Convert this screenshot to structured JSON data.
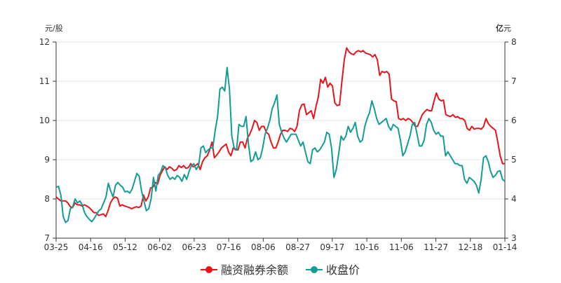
{
  "chart_data": {
    "type": "line",
    "left_axis": {
      "unit": "元/股",
      "ticks": [
        7,
        8,
        9,
        10,
        11,
        12
      ],
      "range": [
        7,
        12
      ]
    },
    "right_axis": {
      "unit_bold": "亿",
      "unit_rest": "元",
      "ticks": [
        3,
        4,
        5,
        6,
        7,
        8
      ],
      "range": [
        3,
        8
      ]
    },
    "x_tick_labels": [
      "03-25",
      "04-16",
      "05-12",
      "06-02",
      "06-23",
      "07-16",
      "08-06",
      "08-27",
      "09-17",
      "10-16",
      "11-06",
      "11-27",
      "12-18",
      "01-14"
    ],
    "series": [
      {
        "name": "融资融券余额",
        "axis": "right",
        "color": "#e8141b",
        "values": [
          4.05,
          4.0,
          3.95,
          3.95,
          3.95,
          3.9,
          3.8,
          3.78,
          3.9,
          3.85,
          3.85,
          3.82,
          3.85,
          3.82,
          3.78,
          3.72,
          3.65,
          3.65,
          3.58,
          3.6,
          3.62,
          3.55,
          3.7,
          3.9,
          4.0,
          4.05,
          4.02,
          3.82,
          3.85,
          3.82,
          3.8,
          3.78,
          3.75,
          3.78,
          3.8,
          3.78,
          3.82,
          4.1,
          3.95,
          4.05,
          4.28,
          4.3,
          4.42,
          4.38,
          4.6,
          4.72,
          4.82,
          4.75,
          4.82,
          4.78,
          4.72,
          4.75,
          4.85,
          4.8,
          4.85,
          4.78,
          4.8,
          4.9,
          4.82,
          4.85,
          4.9,
          4.75,
          4.95,
          5.05,
          5.1,
          5.25,
          5.45,
          5.05,
          5.12,
          5.2,
          5.3,
          5.35,
          5.4,
          5.2,
          5.1,
          5.3,
          5.25,
          5.25,
          5.45,
          5.45,
          5.3,
          5.55,
          5.65,
          5.8,
          6.0,
          5.95,
          5.75,
          5.85,
          5.85,
          5.7,
          5.65,
          5.45,
          5.3,
          5.3,
          5.45,
          5.65,
          5.75,
          5.75,
          5.72,
          5.8,
          5.78,
          5.72,
          5.85,
          6.25,
          6.4,
          6.42,
          6.15,
          6.2,
          6.25,
          6.05,
          6.35,
          6.6,
          7.05,
          6.95,
          7.1,
          6.85,
          6.95,
          6.88,
          6.45,
          6.38,
          6.4,
          7.0,
          7.55,
          7.85,
          7.75,
          7.7,
          7.68,
          7.75,
          7.78,
          7.75,
          7.78,
          7.72,
          7.7,
          7.68,
          7.62,
          7.68,
          7.55,
          7.15,
          7.25,
          7.22,
          7.25,
          7.18,
          6.55,
          6.5,
          6.48,
          6.05,
          6.02,
          6.05,
          6.0,
          6.05,
          6.02,
          5.95,
          5.85,
          5.85,
          6.0,
          6.15,
          6.22,
          6.28,
          6.25,
          6.25,
          6.5,
          6.7,
          6.55,
          6.5,
          6.52,
          6.15,
          6.12,
          6.1,
          6.15,
          6.08,
          6.1,
          6.05,
          6.05,
          6.0,
          5.8,
          5.75,
          5.85,
          5.78,
          5.8,
          5.8,
          5.78,
          5.85,
          6.05,
          5.92,
          5.85,
          5.8,
          5.75,
          5.45,
          5.1,
          4.9,
          4.9
        ]
      },
      {
        "name": "收盘价",
        "axis": "left",
        "color": "#129c95",
        "values": [
          8.3,
          8.32,
          8.1,
          7.55,
          7.4,
          7.45,
          7.75,
          7.8,
          8.0,
          7.9,
          7.95,
          7.85,
          7.65,
          7.55,
          7.48,
          7.42,
          7.5,
          7.6,
          7.7,
          7.75,
          7.9,
          8.05,
          8.4,
          8.2,
          8.05,
          8.35,
          8.42,
          8.35,
          8.3,
          8.18,
          8.2,
          8.15,
          8.25,
          8.45,
          8.65,
          8.58,
          8.2,
          7.95,
          7.7,
          7.75,
          8.0,
          8.55,
          8.2,
          8.6,
          8.68,
          8.85,
          8.8,
          8.6,
          8.5,
          8.55,
          8.5,
          8.6,
          8.55,
          8.45,
          8.62,
          8.5,
          8.7,
          8.85,
          8.9,
          8.75,
          8.85,
          9.3,
          9.35,
          9.18,
          9.25,
          9.3,
          9.3,
          9.75,
          10.1,
          10.8,
          10.85,
          10.75,
          11.35,
          10.8,
          9.6,
          9.3,
          9.25,
          9.9,
          9.85,
          9.85,
          10.1,
          9.4,
          8.95,
          9.0,
          9.2,
          9.0,
          9.05,
          9.3,
          9.65,
          9.8,
          10.0,
          10.3,
          10.45,
          10.65,
          9.9,
          9.7,
          9.55,
          9.45,
          9.55,
          9.65,
          9.65,
          9.65,
          9.5,
          9.35,
          9.45,
          9.2,
          8.95,
          8.9,
          9.25,
          9.3,
          9.2,
          9.25,
          9.35,
          9.45,
          9.7,
          9.65,
          9.3,
          8.55,
          8.75,
          9.15,
          9.6,
          9.5,
          9.6,
          9.85,
          9.7,
          9.8,
          9.95,
          9.6,
          9.45,
          9.5,
          9.85,
          10.05,
          10.2,
          10.5,
          10.3,
          10.05,
          9.9,
          9.95,
          10.0,
          10.05,
          9.85,
          9.75,
          9.9,
          9.85,
          9.8,
          9.5,
          9.1,
          9.2,
          9.4,
          9.6,
          9.9,
          9.95,
          9.65,
          9.35,
          9.35,
          9.5,
          9.9,
          10.05,
          9.95,
          9.75,
          9.65,
          9.7,
          9.6,
          9.6,
          9.1,
          9.2,
          9.1,
          9.0,
          8.9,
          8.9,
          8.85,
          8.85,
          8.5,
          8.4,
          8.55,
          8.5,
          8.45,
          8.35,
          8.15,
          8.5,
          9.05,
          9.1,
          8.95,
          8.7,
          8.55,
          8.6,
          8.7,
          8.72,
          8.5,
          8.45
        ]
      }
    ],
    "legend": {
      "placement": "bottom-center"
    },
    "grid": "horizontal"
  }
}
